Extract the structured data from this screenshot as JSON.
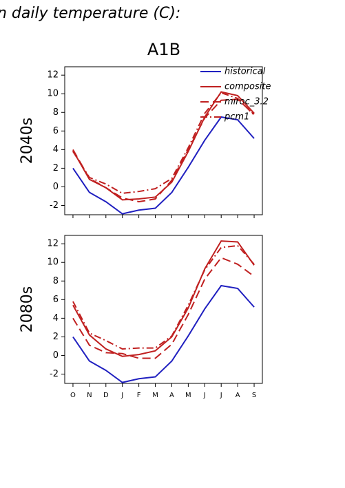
{
  "heading": "n daily temperature (C):",
  "title": "A1B",
  "chart_data": [
    {
      "type": "line",
      "ylabel": "2040s",
      "ylim": [
        -3,
        12.9
      ],
      "yticks": [
        -2,
        0,
        2,
        4,
        6,
        8,
        10,
        12
      ],
      "legend": "top-right",
      "series": [
        {
          "name": "historical",
          "color": "#2020c0",
          "dash": "solid",
          "values": [
            2.0,
            -0.6,
            -1.6,
            -2.9,
            -2.5,
            -2.3,
            -0.6,
            2.1,
            5.0,
            7.5,
            7.2,
            5.2
          ]
        },
        {
          "name": "composite",
          "color": "#c02020",
          "dash": "solid",
          "values": [
            3.9,
            0.8,
            -0.1,
            -1.4,
            -1.3,
            -1.1,
            0.5,
            3.8,
            7.5,
            10.2,
            9.8,
            7.9
          ]
        },
        {
          "name": "miroc_3.2",
          "color": "#c02020",
          "dash": "long",
          "values": [
            4.0,
            0.9,
            -0.1,
            -1.2,
            -1.6,
            -1.3,
            0.7,
            4.0,
            7.4,
            9.3,
            9.4,
            7.8
          ]
        },
        {
          "name": "pcm1",
          "color": "#c02020",
          "dash": "dashdot",
          "values": [
            3.8,
            1.0,
            0.3,
            -0.7,
            -0.5,
            -0.2,
            0.9,
            4.2,
            7.9,
            10.1,
            9.5,
            7.7
          ]
        }
      ]
    },
    {
      "type": "line",
      "ylabel": "2080s",
      "ylim": [
        -3,
        12.9
      ],
      "yticks": [
        -2,
        0,
        2,
        4,
        6,
        8,
        10,
        12
      ],
      "categories": [
        "O",
        "N",
        "D",
        "J",
        "F",
        "M",
        "A",
        "M",
        "J",
        "J",
        "A",
        "S"
      ],
      "series": [
        {
          "color": "#2020c0",
          "dash": "solid",
          "values": [
            2.0,
            -0.6,
            -1.6,
            -2.9,
            -2.5,
            -2.3,
            -0.6,
            2.1,
            5.0,
            7.5,
            7.2,
            5.2
          ]
        },
        {
          "color": "#c02020",
          "dash": "solid",
          "values": [
            5.4,
            2.2,
            0.7,
            -0.1,
            0.1,
            0.5,
            2.0,
            5.1,
            9.3,
            12.3,
            12.2,
            9.7
          ]
        },
        {
          "color": "#c02020",
          "dash": "long",
          "values": [
            4.0,
            1.1,
            0.3,
            0.2,
            -0.3,
            -0.3,
            1.2,
            4.4,
            8.2,
            10.5,
            9.8,
            8.5
          ]
        },
        {
          "color": "#c02020",
          "dash": "dashdot",
          "values": [
            5.8,
            2.4,
            1.6,
            0.7,
            0.8,
            0.8,
            2.1,
            5.4,
            9.2,
            11.6,
            11.8,
            9.8
          ]
        }
      ]
    }
  ]
}
